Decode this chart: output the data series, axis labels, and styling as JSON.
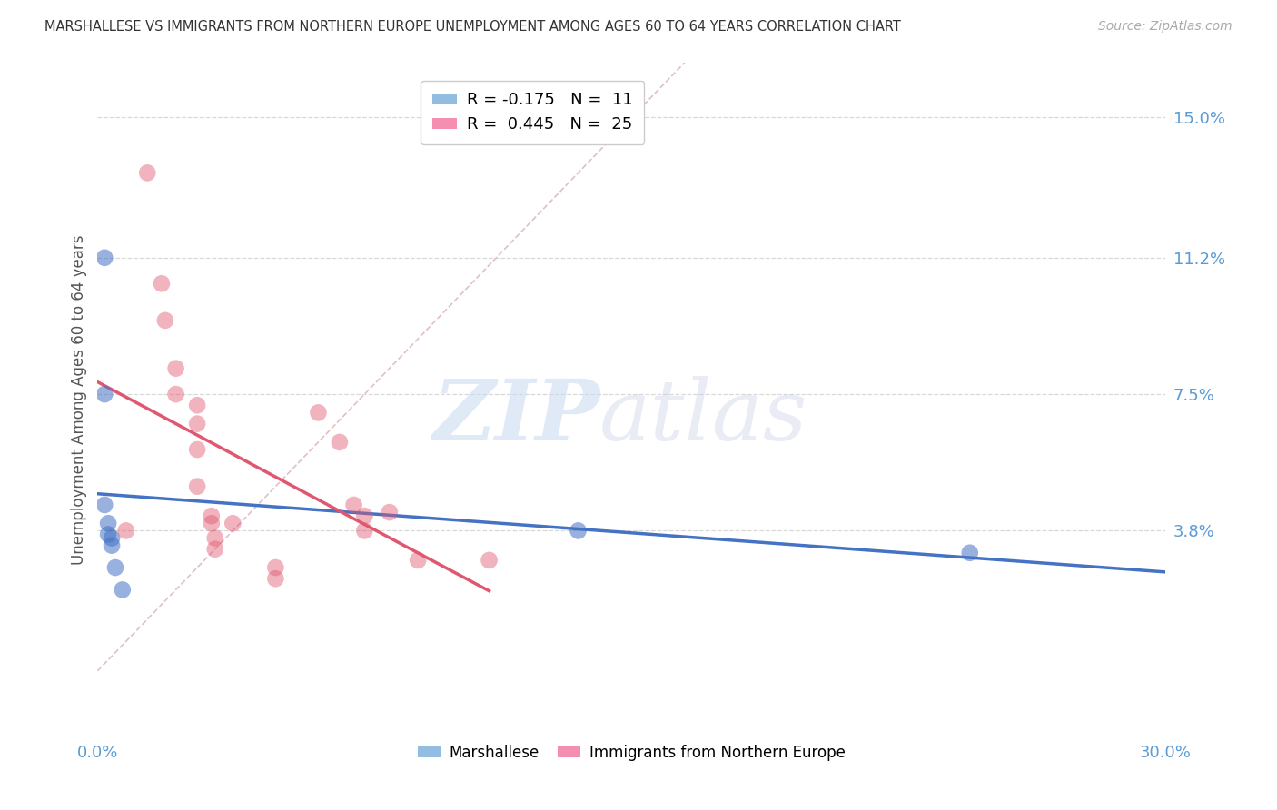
{
  "title": "MARSHALLESE VS IMMIGRANTS FROM NORTHERN EUROPE UNEMPLOYMENT AMONG AGES 60 TO 64 YEARS CORRELATION CHART",
  "source": "Source: ZipAtlas.com",
  "ylabel": "Unemployment Among Ages 60 to 64 years",
  "xlim": [
    0.0,
    0.3
  ],
  "ylim": [
    -0.018,
    0.165
  ],
  "xticks": [
    0.0,
    0.05,
    0.1,
    0.15,
    0.2,
    0.25,
    0.3
  ],
  "xticklabels": [
    "0.0%",
    "",
    "",
    "",
    "",
    "",
    "30.0%"
  ],
  "yticks_right": [
    0.038,
    0.075,
    0.112,
    0.15
  ],
  "ytick_right_labels": [
    "3.8%",
    "7.5%",
    "11.2%",
    "15.0%"
  ],
  "legend_r_entries": [
    {
      "label": "R = -0.175   N =  11",
      "color": "#93bde0"
    },
    {
      "label": "R =  0.445   N =  25",
      "color": "#f48fb1"
    }
  ],
  "marshallese_points": [
    [
      0.002,
      0.112
    ],
    [
      0.002,
      0.075
    ],
    [
      0.002,
      0.045
    ],
    [
      0.003,
      0.04
    ],
    [
      0.003,
      0.037
    ],
    [
      0.004,
      0.036
    ],
    [
      0.004,
      0.034
    ],
    [
      0.005,
      0.028
    ],
    [
      0.007,
      0.022
    ],
    [
      0.135,
      0.038
    ],
    [
      0.245,
      0.032
    ]
  ],
  "northern_europe_points": [
    [
      0.014,
      0.135
    ],
    [
      0.018,
      0.105
    ],
    [
      0.019,
      0.095
    ],
    [
      0.022,
      0.082
    ],
    [
      0.022,
      0.075
    ],
    [
      0.028,
      0.072
    ],
    [
      0.028,
      0.067
    ],
    [
      0.028,
      0.06
    ],
    [
      0.028,
      0.05
    ],
    [
      0.032,
      0.042
    ],
    [
      0.032,
      0.04
    ],
    [
      0.033,
      0.036
    ],
    [
      0.033,
      0.033
    ],
    [
      0.038,
      0.04
    ],
    [
      0.05,
      0.028
    ],
    [
      0.05,
      0.025
    ],
    [
      0.062,
      0.07
    ],
    [
      0.068,
      0.062
    ],
    [
      0.072,
      0.045
    ],
    [
      0.075,
      0.042
    ],
    [
      0.075,
      0.038
    ],
    [
      0.082,
      0.043
    ],
    [
      0.09,
      0.03
    ],
    [
      0.11,
      0.03
    ],
    [
      0.008,
      0.038
    ]
  ],
  "marshallese_line_color": "#4472c4",
  "northern_europe_line_color": "#e05870",
  "diagonal_line_color": "#e0c0c8",
  "watermark_zip": "ZIP",
  "watermark_atlas": "atlas",
  "background_color": "#ffffff",
  "grid_color": "#d8d8d8"
}
